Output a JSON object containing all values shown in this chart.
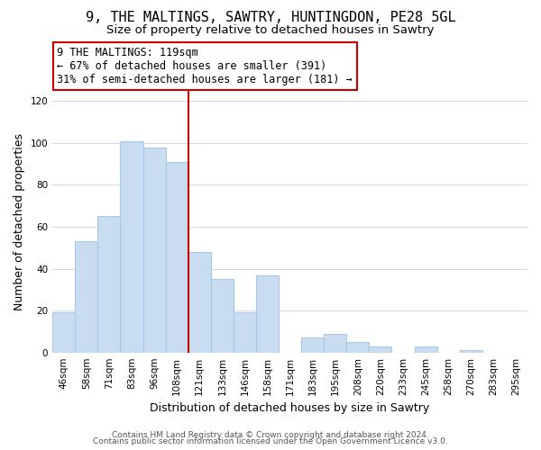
{
  "title": "9, THE MALTINGS, SAWTRY, HUNTINGDON, PE28 5GL",
  "subtitle": "Size of property relative to detached houses in Sawtry",
  "xlabel": "Distribution of detached houses by size in Sawtry",
  "ylabel": "Number of detached properties",
  "bar_labels": [
    "46sqm",
    "58sqm",
    "71sqm",
    "83sqm",
    "96sqm",
    "108sqm",
    "121sqm",
    "133sqm",
    "146sqm",
    "158sqm",
    "171sqm",
    "183sqm",
    "195sqm",
    "208sqm",
    "220sqm",
    "233sqm",
    "245sqm",
    "258sqm",
    "270sqm",
    "283sqm",
    "295sqm"
  ],
  "bar_values": [
    19,
    53,
    65,
    101,
    98,
    91,
    48,
    35,
    19,
    37,
    0,
    7,
    9,
    5,
    3,
    0,
    3,
    0,
    1,
    0,
    0
  ],
  "bar_color": "#c8ddf0",
  "bar_edge_color": "#a8c8e8",
  "highlight_line_color": "#cc0000",
  "annotation_line1": "9 THE MALTINGS: 119sqm",
  "annotation_line2": "← 67% of detached houses are smaller (391)",
  "annotation_line3": "31% of semi-detached houses are larger (181) →",
  "annotation_box_color": "#ffffff",
  "annotation_box_edge": "#cc0000",
  "ylim": [
    0,
    125
  ],
  "yticks": [
    0,
    20,
    40,
    60,
    80,
    100,
    120
  ],
  "footer1": "Contains HM Land Registry data © Crown copyright and database right 2024.",
  "footer2": "Contains public sector information licensed under the Open Government Licence v3.0.",
  "title_fontsize": 11,
  "subtitle_fontsize": 9.5,
  "axis_label_fontsize": 9,
  "tick_fontsize": 7.5,
  "annotation_fontsize": 8.5,
  "footer_fontsize": 6.5,
  "grid_color": "#d0d8e8"
}
